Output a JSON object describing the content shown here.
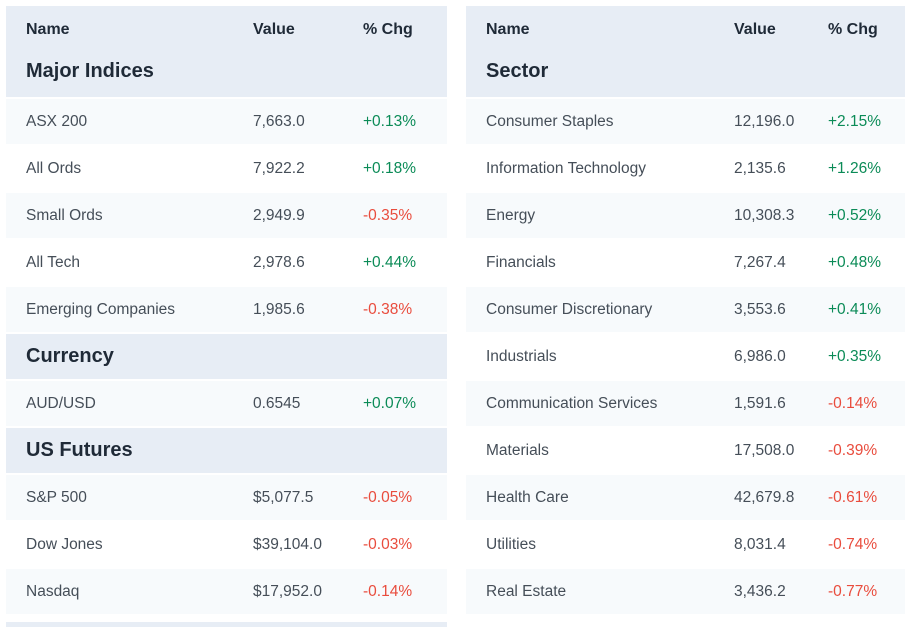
{
  "colors": {
    "header_bg": "#e7edf5",
    "row_alt_bg": "#f7fafc",
    "heading_text": "#1f2a37",
    "body_text": "#454e58",
    "positive": "#0b8b57",
    "negative": "#e94c3d"
  },
  "left_table": {
    "headers": {
      "name": "Name",
      "value": "Value",
      "chg": "% Chg"
    },
    "sections": [
      {
        "title": "Major Indices",
        "rows": [
          {
            "name": "ASX 200",
            "value": "7,663.0",
            "chg": "+0.13%",
            "dir": "up"
          },
          {
            "name": "All Ords",
            "value": "7,922.2",
            "chg": "+0.18%",
            "dir": "up"
          },
          {
            "name": "Small Ords",
            "value": "2,949.9",
            "chg": "-0.35%",
            "dir": "down"
          },
          {
            "name": "All Tech",
            "value": "2,978.6",
            "chg": "+0.44%",
            "dir": "up"
          },
          {
            "name": "Emerging Companies",
            "value": "1,985.6",
            "chg": "-0.38%",
            "dir": "down"
          }
        ]
      },
      {
        "title": "Currency",
        "rows": [
          {
            "name": "AUD/USD",
            "value": "0.6545",
            "chg": "+0.07%",
            "dir": "up"
          }
        ]
      },
      {
        "title": "US Futures",
        "rows": [
          {
            "name": "S&P 500",
            "value": "$5,077.5",
            "chg": "-0.05%",
            "dir": "down"
          },
          {
            "name": "Dow Jones",
            "value": "$39,104.0",
            "chg": "-0.03%",
            "dir": "down"
          },
          {
            "name": "Nasdaq",
            "value": "$17,952.0",
            "chg": "-0.14%",
            "dir": "down"
          }
        ]
      }
    ]
  },
  "right_table": {
    "headers": {
      "name": "Name",
      "value": "Value",
      "chg": "% Chg"
    },
    "sections": [
      {
        "title": "Sector",
        "rows": [
          {
            "name": "Consumer Staples",
            "value": "12,196.0",
            "chg": "+2.15%",
            "dir": "up"
          },
          {
            "name": "Information Technology",
            "value": "2,135.6",
            "chg": "+1.26%",
            "dir": "up"
          },
          {
            "name": "Energy",
            "value": "10,308.3",
            "chg": "+0.52%",
            "dir": "up"
          },
          {
            "name": "Financials",
            "value": "7,267.4",
            "chg": "+0.48%",
            "dir": "up"
          },
          {
            "name": "Consumer Discretionary",
            "value": "3,553.6",
            "chg": "+0.41%",
            "dir": "up"
          },
          {
            "name": "Industrials",
            "value": "6,986.0",
            "chg": "+0.35%",
            "dir": "up"
          },
          {
            "name": "Communication Services",
            "value": "1,591.6",
            "chg": "-0.14%",
            "dir": "down"
          },
          {
            "name": "Materials",
            "value": "17,508.0",
            "chg": "-0.39%",
            "dir": "down"
          },
          {
            "name": "Health Care",
            "value": "42,679.8",
            "chg": "-0.61%",
            "dir": "down"
          },
          {
            "name": "Utilities",
            "value": "8,031.4",
            "chg": "-0.74%",
            "dir": "down"
          },
          {
            "name": "Real Estate",
            "value": "3,436.2",
            "chg": "-0.77%",
            "dir": "down"
          }
        ]
      }
    ]
  }
}
